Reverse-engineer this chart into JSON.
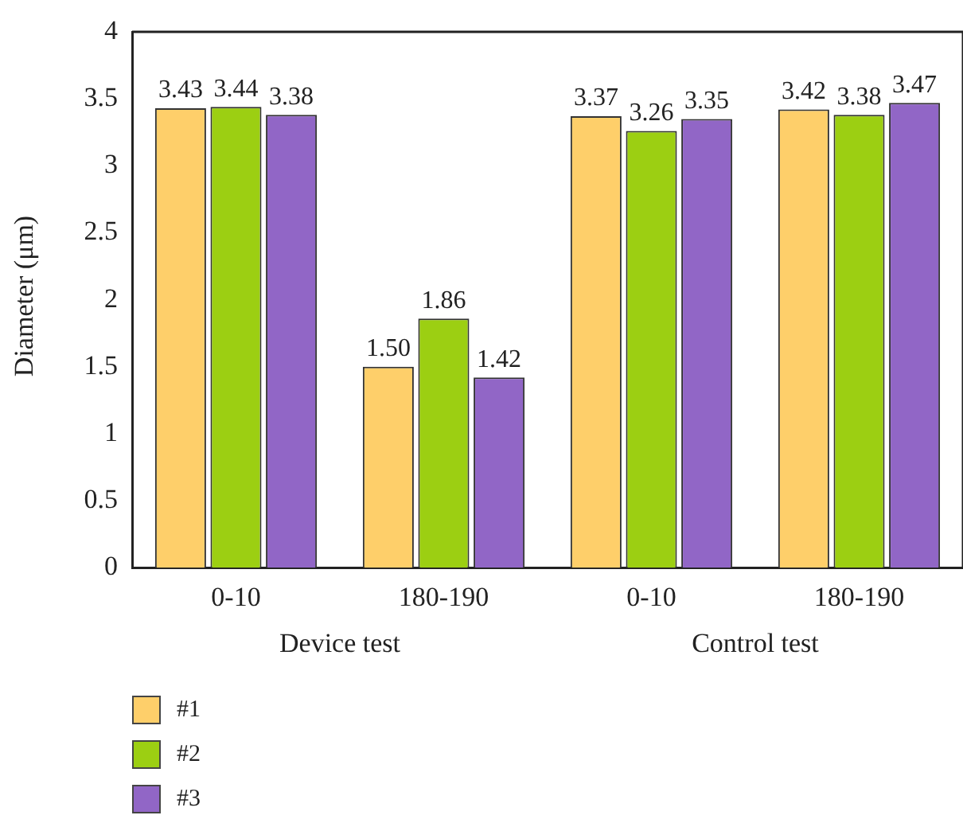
{
  "chart_data": {
    "type": "bar",
    "ylabel": "Diameter (μm)",
    "categories": [
      "0-10",
      "180-190",
      "0-10",
      "180-190"
    ],
    "annotations": [
      "Device test",
      "Control test"
    ],
    "series": [
      {
        "name": "#1",
        "color": "#fecf6a",
        "values": [
          3.43,
          1.5,
          3.37,
          3.42
        ],
        "value_labels": [
          "3.43",
          "1.50",
          "3.37",
          "3.42"
        ]
      },
      {
        "name": "#2",
        "color": "#9ccf12",
        "values": [
          3.44,
          1.86,
          3.26,
          3.38
        ],
        "value_labels": [
          "3.44",
          "1.86",
          "3.26",
          "3.38"
        ]
      },
      {
        "name": "#3",
        "color": "#9166c6",
        "values": [
          3.38,
          1.42,
          3.35,
          3.47
        ],
        "value_labels": [
          "3.38",
          "1.42",
          "3.35",
          "3.47"
        ]
      }
    ],
    "ylim": [
      0,
      4
    ],
    "yticks": [
      0,
      0.5,
      1,
      1.5,
      2,
      2.5,
      3,
      3.5,
      4
    ],
    "grid": false,
    "legend": "bottom left"
  }
}
